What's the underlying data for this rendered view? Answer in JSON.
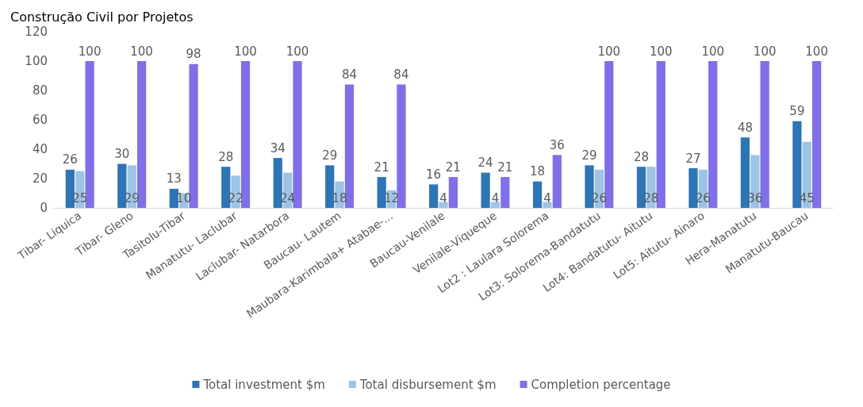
{
  "chart_data": {
    "type": "bar",
    "title": "Construção Civil por Projetos",
    "categories": [
      "Tibar- Liquica",
      "Tibar- Gleno",
      "Tasitolu-Tibar",
      "Manatutu- Laclubar",
      "Laclubar- Natarbora",
      "Baucau- Lautem",
      "Maubara-Karimbala+ Atabae-...",
      "Baucau-Venilale",
      "Venilale-Viqueque",
      "Lot2 : Laulara Solorema",
      "Lot3: Solorema-Bandatutu",
      "Lot4: Bandatutu- Aitutu",
      "Lot5: Aitutu- Ainaro",
      "Hera-Manatutu",
      "Manatutu-Baucau"
    ],
    "series": [
      {
        "name": "Total investment $m",
        "color": "#2e75b6",
        "values": [
          26,
          30,
          13,
          28,
          34,
          29,
          21,
          16,
          24,
          18,
          29,
          28,
          27,
          48,
          59
        ]
      },
      {
        "name": "Total disbursement $m",
        "color": "#9dc3e6",
        "values": [
          25,
          29,
          10,
          22,
          24,
          18,
          12,
          4,
          4,
          4,
          26,
          28,
          26,
          36,
          45
        ]
      },
      {
        "name": "Completion percentage",
        "color": "#7f6fe8",
        "values": [
          100,
          100,
          98,
          100,
          100,
          84,
          84,
          21,
          21,
          36,
          100,
          100,
          100,
          100,
          100
        ]
      }
    ],
    "ylim": [
      0,
      120
    ],
    "yticks": [
      0,
      20,
      40,
      60,
      80,
      100,
      120
    ],
    "grid": false,
    "legend": "bottom",
    "data_labels": true
  }
}
